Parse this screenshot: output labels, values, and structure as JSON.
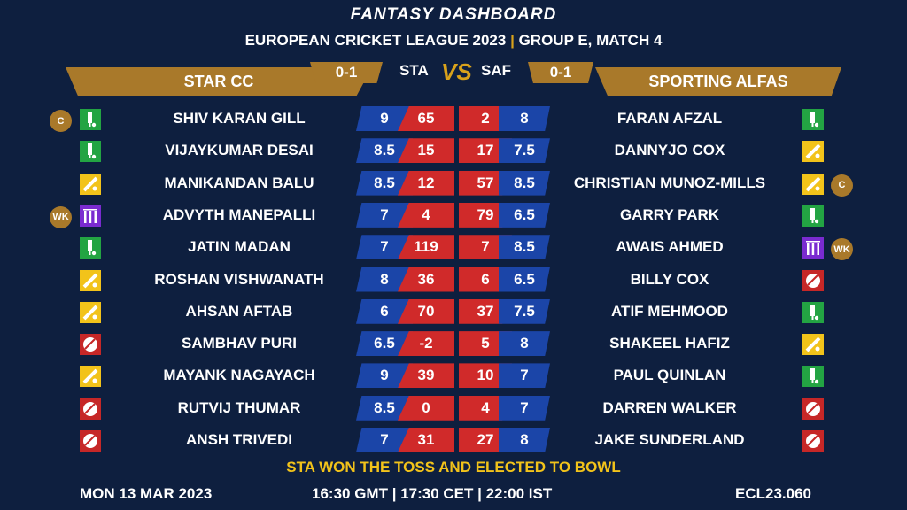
{
  "header": {
    "title": "FANTASY DASHBOARD",
    "league": "EUROPEAN CRICKET LEAGUE 2023",
    "separator": "|",
    "match": "GROUP E, MATCH 4"
  },
  "teams": {
    "left": {
      "name": "STAR CC",
      "abbr": "STA",
      "score": "0-1"
    },
    "right": {
      "name": "SPORTING ALFAS",
      "abbr": "SAF",
      "score": "0-1"
    },
    "vs": "VS"
  },
  "rows": [
    {
      "l_badge": "C",
      "l_role": "bat",
      "l_name": "SHIV KARAN GILL",
      "l_credit": "9",
      "l_points": "65",
      "r_points": "2",
      "r_credit": "8",
      "r_name": "FARAN AFZAL",
      "r_role": "bat",
      "r_badge": ""
    },
    {
      "l_badge": "",
      "l_role": "bat",
      "l_name": "VIJAYKUMAR DESAI",
      "l_credit": "8.5",
      "l_points": "15",
      "r_points": "17",
      "r_credit": "7.5",
      "r_name": "DANNYJO COX",
      "r_role": "ar",
      "r_badge": ""
    },
    {
      "l_badge": "",
      "l_role": "ar",
      "l_name": "MANIKANDAN BALU",
      "l_credit": "8.5",
      "l_points": "12",
      "r_points": "57",
      "r_credit": "8.5",
      "r_name": "CHRISTIAN MUNOZ-MILLS",
      "r_role": "ar",
      "r_badge": "C"
    },
    {
      "l_badge": "WK",
      "l_role": "wk",
      "l_name": "ADVYTH MANEPALLI",
      "l_credit": "7",
      "l_points": "4",
      "r_points": "79",
      "r_credit": "6.5",
      "r_name": "GARRY PARK",
      "r_role": "bat",
      "r_badge": ""
    },
    {
      "l_badge": "",
      "l_role": "bat",
      "l_name": "JATIN MADAN",
      "l_credit": "7",
      "l_points": "119",
      "r_points": "7",
      "r_credit": "8.5",
      "r_name": "AWAIS AHMED",
      "r_role": "wk",
      "r_badge": "WK"
    },
    {
      "l_badge": "",
      "l_role": "ar",
      "l_name": "ROSHAN VISHWANATH",
      "l_credit": "8",
      "l_points": "36",
      "r_points": "6",
      "r_credit": "6.5",
      "r_name": "BILLY COX",
      "r_role": "bowl",
      "r_badge": ""
    },
    {
      "l_badge": "",
      "l_role": "ar",
      "l_name": "AHSAN AFTAB",
      "l_credit": "6",
      "l_points": "70",
      "r_points": "37",
      "r_credit": "7.5",
      "r_name": "ATIF MEHMOOD",
      "r_role": "bat",
      "r_badge": ""
    },
    {
      "l_badge": "",
      "l_role": "bowl",
      "l_name": "SAMBHAV PURI",
      "l_credit": "6.5",
      "l_points": "-2",
      "r_points": "5",
      "r_credit": "8",
      "r_name": "SHAKEEL HAFIZ",
      "r_role": "ar",
      "r_badge": ""
    },
    {
      "l_badge": "",
      "l_role": "ar",
      "l_name": "MAYANK NAGAYACH",
      "l_credit": "9",
      "l_points": "39",
      "r_points": "10",
      "r_credit": "7",
      "r_name": "PAUL QUINLAN",
      "r_role": "bat",
      "r_badge": ""
    },
    {
      "l_badge": "",
      "l_role": "bowl",
      "l_name": "RUTVIJ THUMAR",
      "l_credit": "8.5",
      "l_points": "0",
      "r_points": "4",
      "r_credit": "7",
      "r_name": "DARREN WALKER",
      "r_role": "bowl",
      "r_badge": ""
    },
    {
      "l_badge": "",
      "l_role": "bowl",
      "l_name": "ANSH TRIVEDI",
      "l_credit": "7",
      "l_points": "31",
      "r_points": "27",
      "r_credit": "8",
      "r_name": "JAKE SUNDERLAND",
      "r_role": "bowl",
      "r_badge": ""
    }
  ],
  "role_icons": {
    "bat": "bat-icon",
    "ar": "all-rounder-icon",
    "bowl": "ball-icon",
    "wk": "wicketkeeper-icon"
  },
  "colors": {
    "background": "#0e1f3f",
    "gold": "#a9792a",
    "credit_blue": "#1b45a8",
    "points_red": "#d02a2a",
    "toss_yellow": "#f2c31a"
  },
  "toss": "STA WON THE TOSS AND ELECTED TO BOWL",
  "footer": {
    "date": "MON 13 MAR 2023",
    "time": "16:30 GMT | 17:30 CET | 22:00 IST",
    "code": "ECL23.060"
  }
}
